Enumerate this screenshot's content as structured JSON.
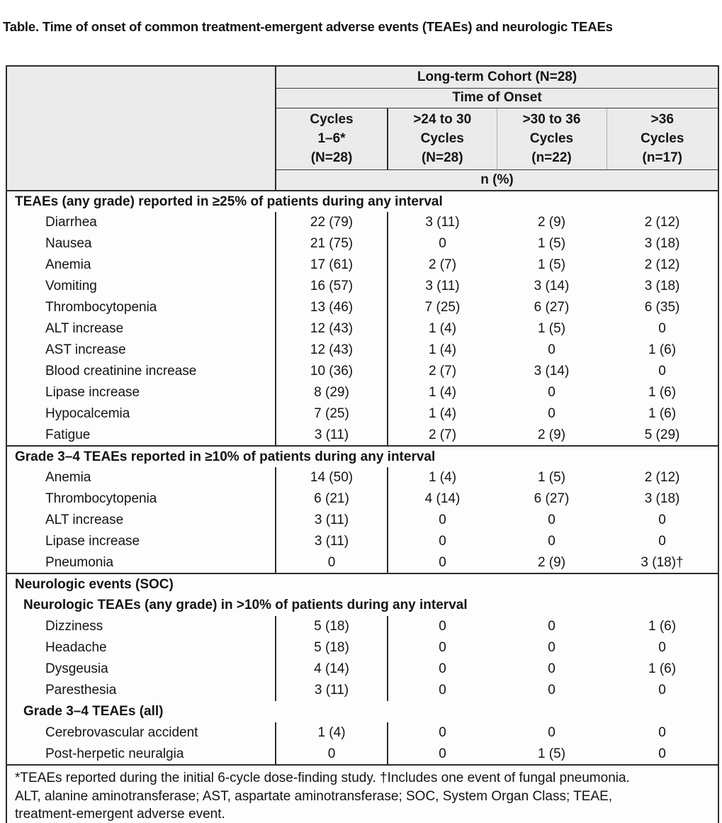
{
  "title": "Table. Time of onset of common treatment-emergent adverse events (TEAEs) and neurologic TEAEs",
  "table": {
    "cohort_header": "Long-term Cohort (N=28)",
    "time_of_onset_header": "Time of Onset",
    "columns": [
      {
        "lines": [
          "Cycles",
          "1–6*",
          "(N=28)"
        ]
      },
      {
        "lines": [
          ">24 to 30",
          "Cycles",
          "(N=28)"
        ]
      },
      {
        "lines": [
          ">30 to 36",
          "Cycles",
          "(n=22)"
        ]
      },
      {
        "lines": [
          ">36",
          "Cycles",
          "(n=17)"
        ]
      }
    ],
    "unit_header": "n (%)",
    "sections": [
      {
        "rows": [
          {
            "type": "header",
            "text": "TEAEs (any grade) reported in ≥25% of patients during any interval"
          },
          {
            "type": "data",
            "label": "Diarrhea",
            "values": [
              "22 (79)",
              "3 (11)",
              "2 (9)",
              "2 (12)"
            ]
          },
          {
            "type": "data",
            "label": "Nausea",
            "values": [
              "21 (75)",
              "0",
              "1 (5)",
              "3 (18)"
            ]
          },
          {
            "type": "data",
            "label": "Anemia",
            "values": [
              "17 (61)",
              "2 (7)",
              "1 (5)",
              "2 (12)"
            ]
          },
          {
            "type": "data",
            "label": "Vomiting",
            "values": [
              "16 (57)",
              "3 (11)",
              "3 (14)",
              "3 (18)"
            ]
          },
          {
            "type": "data",
            "label": "Thrombocytopenia",
            "values": [
              "13 (46)",
              "7 (25)",
              "6 (27)",
              "6 (35)"
            ]
          },
          {
            "type": "data",
            "label": "ALT increase",
            "values": [
              "12 (43)",
              "1 (4)",
              "1 (5)",
              "0"
            ]
          },
          {
            "type": "data",
            "label": "AST increase",
            "values": [
              "12 (43)",
              "1 (4)",
              "0",
              "1 (6)"
            ]
          },
          {
            "type": "data",
            "label": "Blood creatinine increase",
            "values": [
              "10 (36)",
              "2 (7)",
              "3 (14)",
              "0"
            ]
          },
          {
            "type": "data",
            "label": "Lipase increase",
            "values": [
              "8 (29)",
              "1 (4)",
              "0",
              "1 (6)"
            ]
          },
          {
            "type": "data",
            "label": "Hypocalcemia",
            "values": [
              "7 (25)",
              "1 (4)",
              "0",
              "1 (6)"
            ]
          },
          {
            "type": "data",
            "label": "Fatigue",
            "values": [
              "3 (11)",
              "2 (7)",
              "2 (9)",
              "5 (29)"
            ]
          }
        ]
      },
      {
        "rows": [
          {
            "type": "header",
            "text": "Grade 3–4 TEAEs reported in ≥10% of patients during any interval"
          },
          {
            "type": "data",
            "label": "Anemia",
            "values": [
              "14 (50)",
              "1 (4)",
              "1 (5)",
              "2 (12)"
            ]
          },
          {
            "type": "data",
            "label": "Thrombocytopenia",
            "values": [
              "6 (21)",
              "4 (14)",
              "6 (27)",
              "3 (18)"
            ]
          },
          {
            "type": "data",
            "label": "ALT increase",
            "values": [
              "3 (11)",
              "0",
              "0",
              "0"
            ]
          },
          {
            "type": "data",
            "label": "Lipase increase",
            "values": [
              "3 (11)",
              "0",
              "0",
              "0"
            ]
          },
          {
            "type": "data",
            "label": "Pneumonia",
            "values": [
              "0",
              "0",
              "2 (9)",
              "3 (18)†"
            ]
          }
        ]
      },
      {
        "rows": [
          {
            "type": "header",
            "text": "Neurologic events (SOC)"
          },
          {
            "type": "subheader",
            "text": "Neurologic TEAEs (any grade) in >10% of patients during any interval"
          },
          {
            "type": "data",
            "label": "Dizziness",
            "values": [
              "5 (18)",
              "0",
              "0",
              "1 (6)"
            ]
          },
          {
            "type": "data",
            "label": "Headache",
            "values": [
              "5 (18)",
              "0",
              "0",
              "0"
            ]
          },
          {
            "type": "data",
            "label": "Dysgeusia",
            "values": [
              "4 (14)",
              "0",
              "0",
              "1 (6)"
            ]
          },
          {
            "type": "data",
            "label": "Paresthesia",
            "values": [
              "3 (11)",
              "0",
              "0",
              "0"
            ]
          },
          {
            "type": "subheader",
            "text": "Grade 3–4 TEAEs (all)"
          },
          {
            "type": "data",
            "label": "Cerebrovascular accident",
            "values": [
              "1 (4)",
              "0",
              "0",
              "0"
            ]
          },
          {
            "type": "data",
            "label": "Post-herpetic neuralgia",
            "values": [
              "0",
              "0",
              "1 (5)",
              "0"
            ]
          }
        ]
      }
    ],
    "footnote_lines": [
      "*TEAEs reported during the initial 6-cycle dose-finding study. †Includes one event of fungal pneumonia.",
      "ALT, alanine aminotransferase; AST, aspartate aminotransferase; SOC, System Organ Class; TEAE,",
      "treatment-emergent adverse event."
    ]
  }
}
